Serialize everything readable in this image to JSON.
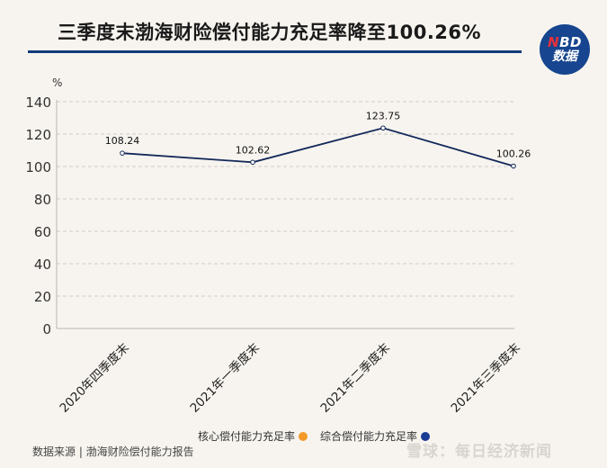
{
  "header": {
    "title": "三季度末渤海财险偿付能力充足率降至100.26%",
    "badge": {
      "top_n": "N",
      "top_rest": "BD",
      "bottom": "数据"
    }
  },
  "chart_data": {
    "type": "line",
    "title": "三季度末渤海财险偿付能力充足率降至100.26%",
    "xlabel": "",
    "ylabel": "%",
    "ylim": [
      0,
      140
    ],
    "yticks": [
      0,
      20,
      40,
      60,
      80,
      100,
      120,
      140
    ],
    "grid": true,
    "categories": [
      "2020年四季度末",
      "2021年一季度末",
      "2021年二季度末",
      "2021年三季度末"
    ],
    "series": [
      {
        "name": "综合偿付能力充足率",
        "values": [
          108.24,
          102.62,
          123.75,
          100.26
        ],
        "color": "#13285a"
      }
    ],
    "data_labels": [
      "108.24",
      "102.62",
      "123.75",
      "100.26"
    ],
    "legend": {
      "position": "bottom",
      "entries": [
        {
          "name": "核心偿付能力充足率",
          "color": "#f39a2a"
        },
        {
          "name": "综合偿付能力充足率",
          "color": "#1a3c94"
        }
      ]
    }
  },
  "axis": {
    "unit": "%"
  },
  "legend": {
    "core_label": "核心偿付能力充足率",
    "core_color": "#f39a2a",
    "total_label": "综合偿付能力充足率",
    "total_color": "#1a3c94"
  },
  "footer": {
    "source": "数据来源 | 渤海财险偿付能力报告",
    "watermark": "雪球：每日经济新闻"
  },
  "colors": {
    "background": "#f7f4ef",
    "accent": "#123a7a",
    "line": "#13285a"
  }
}
